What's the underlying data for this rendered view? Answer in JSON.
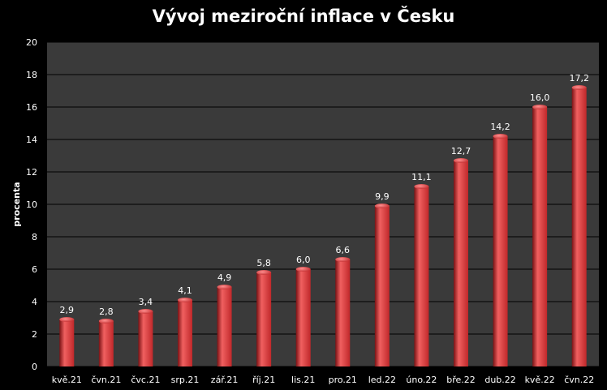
{
  "chart_data": {
    "type": "bar",
    "title": "Vývoj meziroční inflace v Česku",
    "xlabel": "",
    "ylabel": "procenta",
    "ylim": [
      0,
      20
    ],
    "yticks": [
      0,
      2,
      4,
      6,
      8,
      10,
      12,
      14,
      16,
      18,
      20
    ],
    "grid": true,
    "legend": "none",
    "categories": [
      "kvě.21",
      "čvn.21",
      "čvc.21",
      "srp.21",
      "zář.21",
      "říj.21",
      "lis.21",
      "pro.21",
      "led.22",
      "úno.22",
      "bře.22",
      "dub.22",
      "kvě.22",
      "čvn.22"
    ],
    "values": [
      2.9,
      2.8,
      3.4,
      4.1,
      4.9,
      5.8,
      6.0,
      6.6,
      9.9,
      11.1,
      12.7,
      14.2,
      16.0,
      17.2
    ],
    "value_labels": [
      "2,9",
      "2,8",
      "3,4",
      "4,1",
      "4,9",
      "5,8",
      "6,0",
      "6,6",
      "9,9",
      "11,1",
      "12,7",
      "14,2",
      "16,0",
      "17,2"
    ],
    "colors": {
      "bar": "#c0282a",
      "bar_light": "#f06060",
      "bar_dark": "#7a1214",
      "plot_bg": "#3a3a3a",
      "grid": "#000000"
    }
  }
}
